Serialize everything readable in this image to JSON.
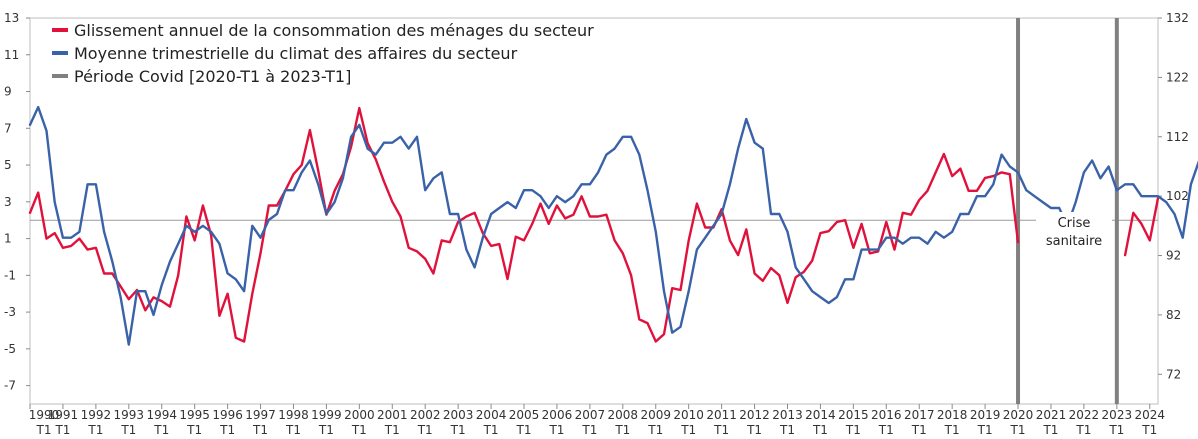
{
  "chart_data": {
    "type": "line",
    "colors": {
      "consumption": "#e0123c",
      "climate": "#3a62a8",
      "covid": "#808080"
    },
    "legend": [
      "Glissement annuel de la consommation des ménages du secteur",
      "Moyenne trimestrielle du climat des affaires du secteur",
      "Période Covid [2020-T1 à 2023-T1]"
    ],
    "legend_position": "top-left",
    "annotation": [
      "Crise",
      "sanitaire"
    ],
    "y_left": {
      "min": -8,
      "max": 13,
      "ticks": [
        -7,
        -5,
        -3,
        -1,
        1,
        3,
        5,
        7,
        9,
        11,
        13
      ],
      "reference_line": 2
    },
    "y_right": {
      "min": 67,
      "max": 132,
      "ticks": [
        72,
        82,
        92,
        102,
        112,
        122,
        132
      ]
    },
    "x_ticks": {
      "years": [
        "1990",
        "1991",
        "1992",
        "1993",
        "1994",
        "1995",
        "1996",
        "1997",
        "1998",
        "1999",
        "2000",
        "2001",
        "2002",
        "2003",
        "2004",
        "2005",
        "2006",
        "2007",
        "2008",
        "2009",
        "2010",
        "2011",
        "2012",
        "2013",
        "2014",
        "2015",
        "2016",
        "2017",
        "2018",
        "2019",
        "2020",
        "2021",
        "2022",
        "2023",
        "2024"
      ],
      "quarter_label": "T1"
    },
    "x_start": "1990-T1",
    "x_end": "2024-T2",
    "covid_period": [
      "2020-T1",
      "2023-T1"
    ],
    "series": [
      {
        "key": "consumption",
        "axis": "left",
        "start": "1990-T1",
        "values": [
          2.4,
          3.5,
          1.0,
          1.3,
          0.5,
          0.6,
          1.0,
          0.4,
          0.5,
          -0.9,
          -0.9,
          -1.6,
          -2.3,
          -1.8,
          -2.9,
          -2.2,
          -2.4,
          -2.7,
          -1.0,
          2.2,
          0.9,
          2.8,
          1.2,
          -3.2,
          -2.0,
          -4.4,
          -4.6,
          -2.0,
          0.2,
          2.8,
          2.8,
          3.6,
          4.5,
          5.0,
          6.9,
          4.7,
          2.3,
          3.6,
          4.5,
          6.0,
          8.1,
          6.2,
          5.3,
          4.1,
          3.0,
          2.2,
          0.5,
          0.3,
          -0.1,
          -0.9,
          0.9,
          0.8,
          1.9,
          2.2,
          2.4,
          1.3,
          0.6,
          0.7,
          -1.2,
          1.1,
          0.9,
          1.8,
          2.9,
          1.8,
          2.8,
          2.1,
          2.3,
          3.3,
          2.2,
          2.2,
          2.3,
          0.9,
          0.2,
          -1.0,
          -3.4,
          -3.6,
          -4.6,
          -4.2,
          -1.7,
          -1.8,
          0.9,
          2.9,
          1.6,
          1.6,
          2.6,
          0.9,
          0.1,
          1.5,
          -0.9,
          -1.3,
          -0.6,
          -1.0,
          -2.5,
          -1.1,
          -0.8,
          -0.2,
          1.3,
          1.4,
          1.9,
          2.0,
          0.5,
          1.8,
          0.2,
          0.3,
          1.9,
          0.4,
          2.4,
          2.3,
          3.1,
          3.6,
          4.6,
          5.6,
          4.4,
          4.8,
          3.6,
          3.6,
          4.3,
          4.4,
          4.6,
          4.5,
          0.8,
          null,
          null,
          null,
          null,
          null,
          null,
          null,
          null,
          null,
          null,
          null,
          null,
          0.1,
          2.4,
          1.8,
          0.9,
          3.2
        ]
      },
      {
        "key": "climate",
        "axis": "right",
        "start": "1990-T1",
        "values": [
          114,
          117,
          113,
          101,
          95,
          95,
          96,
          104,
          104,
          96,
          91,
          85,
          77,
          86,
          86,
          82,
          87,
          91,
          94,
          97,
          96,
          97,
          96,
          94,
          89,
          88,
          86,
          97,
          95,
          98,
          99,
          103,
          103,
          106,
          108,
          104,
          99,
          101,
          105,
          112,
          114,
          110,
          109,
          111,
          111,
          112,
          110,
          112,
          103,
          105,
          106,
          99,
          99,
          93,
          90,
          95,
          99,
          100,
          101,
          100,
          103,
          103,
          102,
          100,
          102,
          101,
          102,
          104,
          104,
          106,
          109,
          110,
          112,
          112,
          109,
          103,
          96,
          86,
          79,
          80,
          86,
          93,
          95,
          97,
          99,
          104,
          110,
          115,
          111,
          110,
          99,
          99,
          96,
          90,
          88,
          86,
          85,
          84,
          85,
          88,
          88,
          93,
          93,
          93,
          95,
          95,
          94,
          95,
          95,
          94,
          96,
          95,
          96,
          99,
          99,
          102,
          102,
          104,
          109,
          107,
          106,
          103,
          102,
          101,
          100,
          100,
          97,
          101,
          106,
          108,
          105,
          107,
          103,
          104,
          104,
          102,
          102,
          102,
          101,
          99,
          95,
          104,
          108,
          103,
          99,
          97
        ]
      }
    ]
  }
}
